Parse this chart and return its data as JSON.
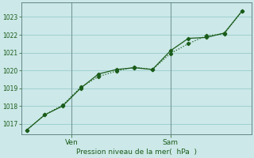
{
  "xlabel": "Pression niveau de la mer(  hPa  )",
  "bg_color": "#cce8e8",
  "grid_color": "#99cccc",
  "line_color": "#1a5c1a",
  "ylim": [
    1016.4,
    1023.8
  ],
  "yticks": [
    1017,
    1018,
    1019,
    1020,
    1021,
    1022,
    1023
  ],
  "xtick_labels": [
    "Ven",
    "Sam"
  ],
  "series1_x": [
    0,
    1,
    2,
    3,
    4,
    5,
    6,
    7,
    8,
    9,
    10,
    11,
    12
  ],
  "series1_y": [
    1016.65,
    1017.5,
    1018.0,
    1019.0,
    1019.8,
    1020.05,
    1020.15,
    1020.05,
    1021.1,
    1021.8,
    1021.85,
    1022.1,
    1023.35
  ],
  "series2_x": [
    0,
    1,
    2,
    3,
    4,
    5,
    6,
    7,
    8,
    9,
    10,
    11,
    12
  ],
  "series2_y": [
    1016.65,
    1017.5,
    1018.05,
    1019.05,
    1019.65,
    1019.97,
    1020.18,
    1020.05,
    1020.95,
    1021.5,
    1021.95,
    1022.05,
    1023.35
  ],
  "ven_x": 2.5,
  "sam_x": 8.0,
  "xlim": [
    -0.3,
    12.5
  ]
}
